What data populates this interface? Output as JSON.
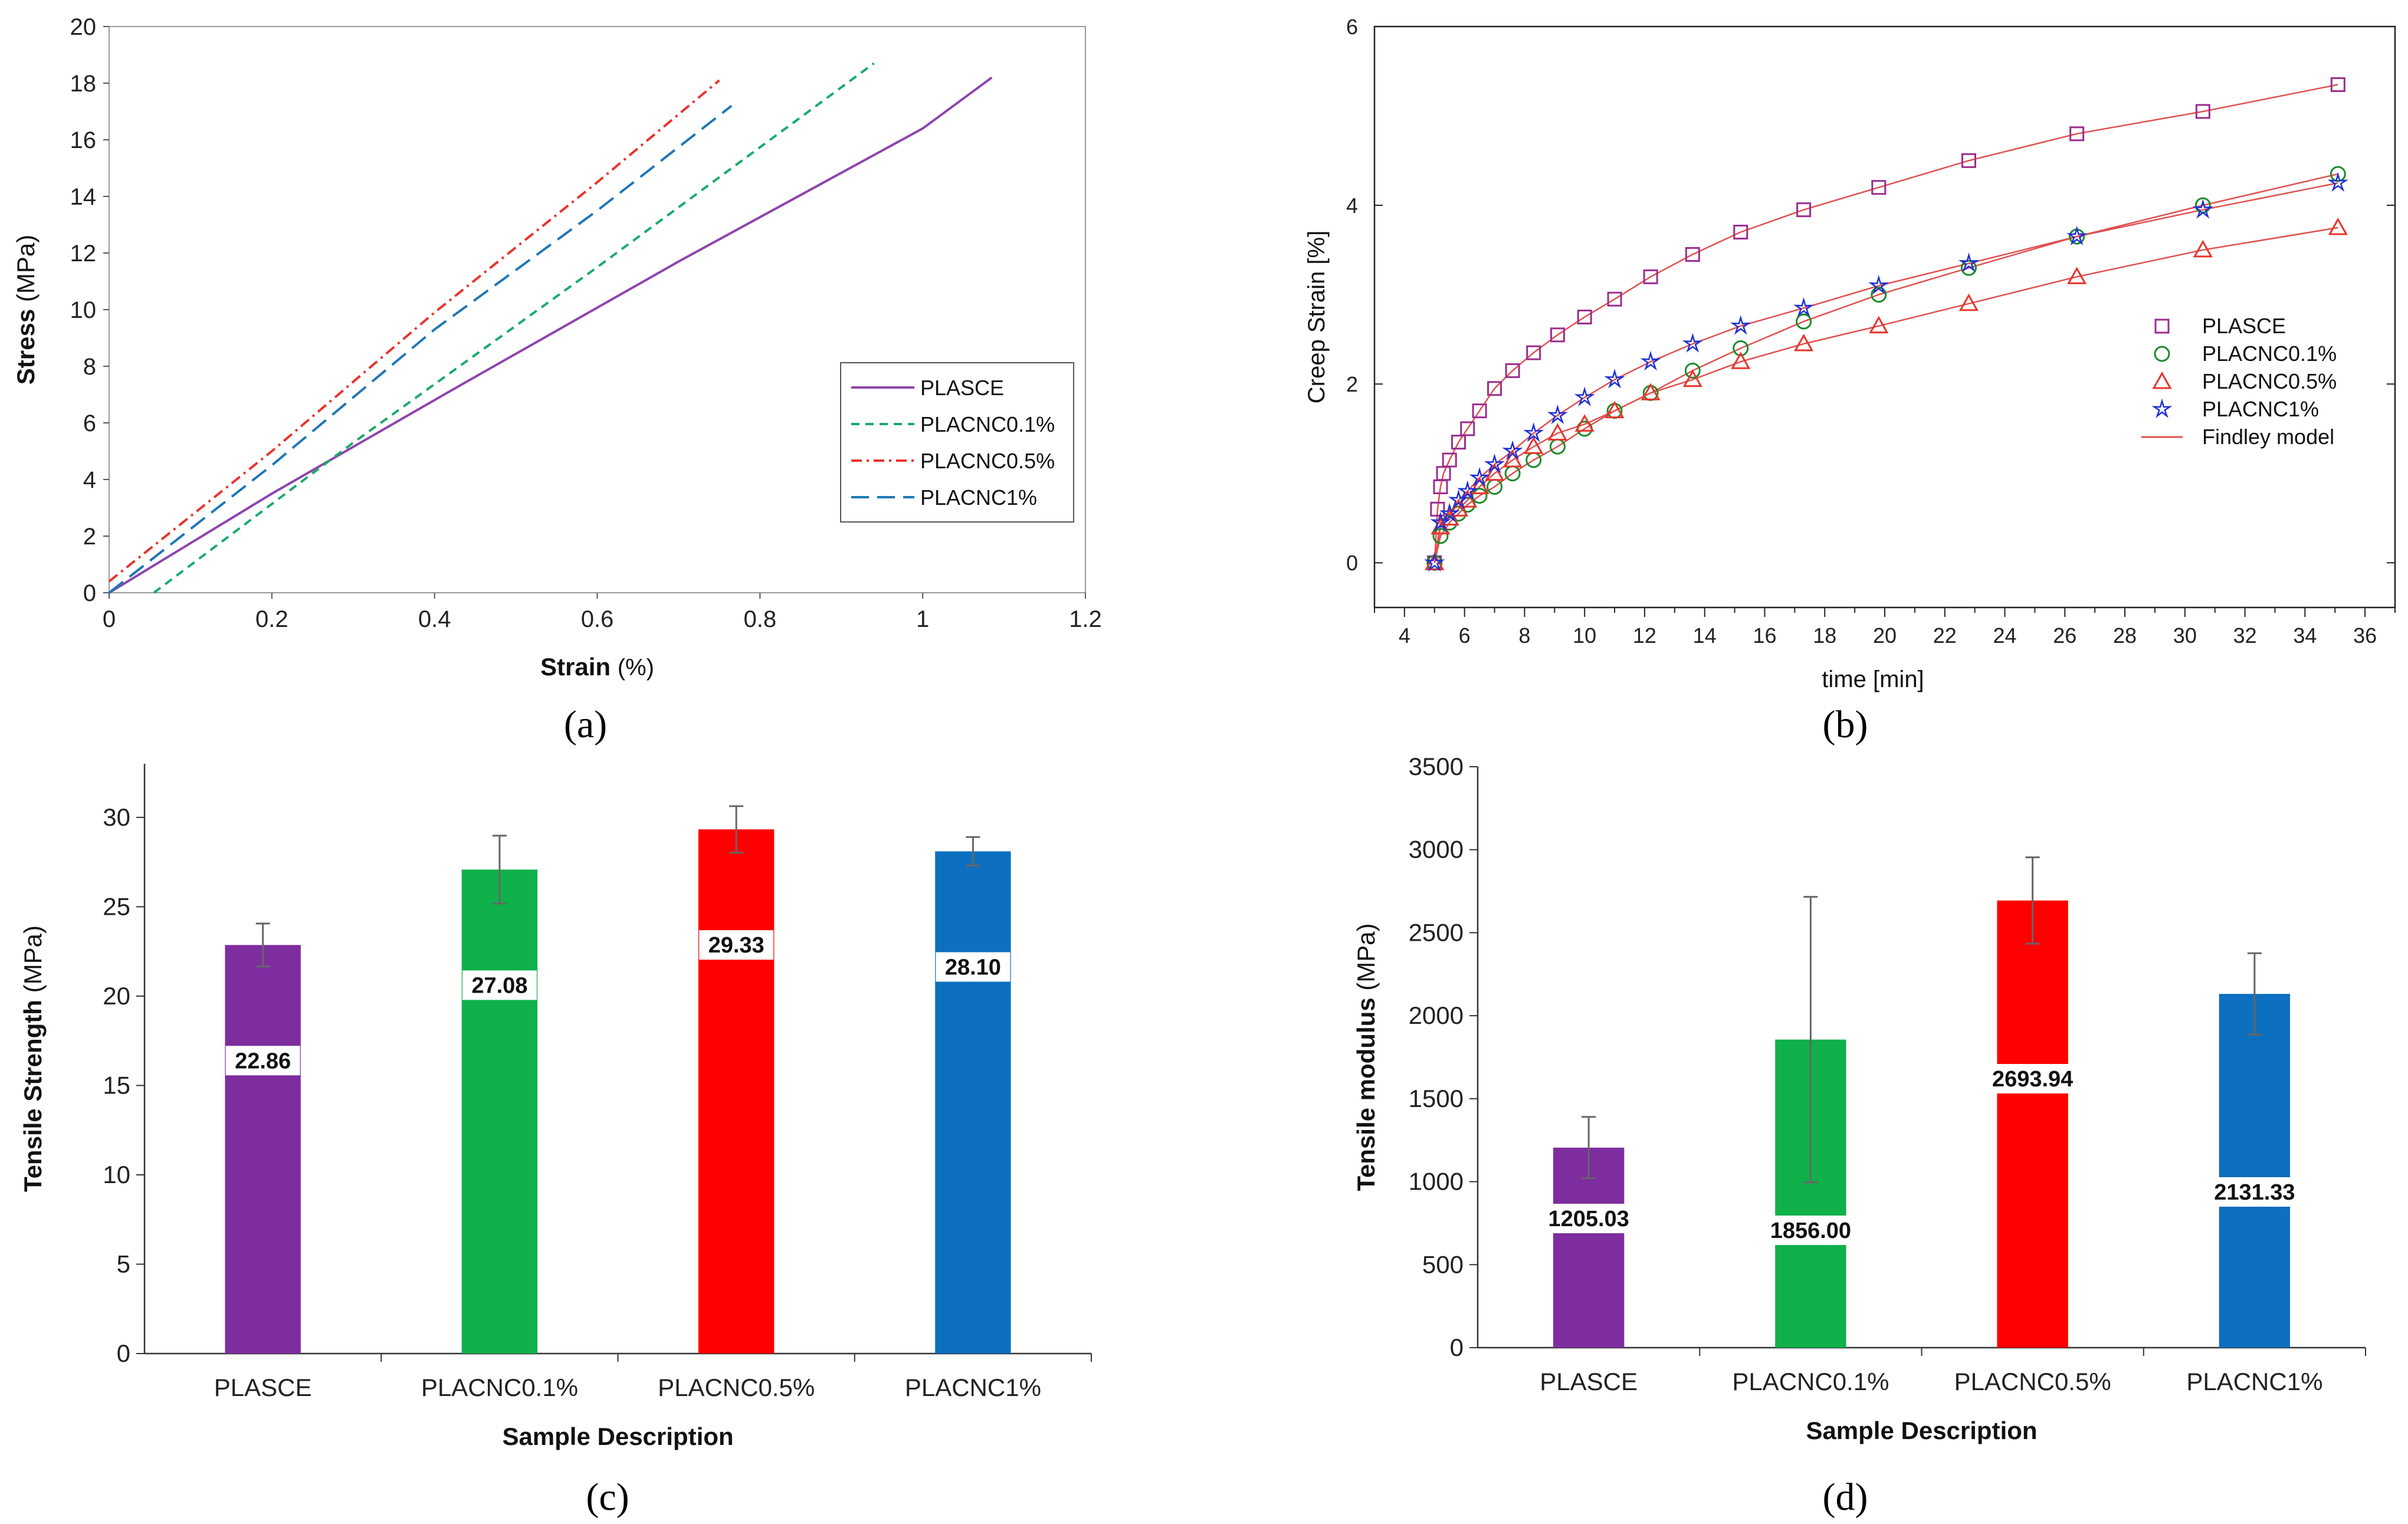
{
  "chart_data": [
    {
      "id": "a",
      "type": "line",
      "caption": "(a)",
      "xlabel": "Strain",
      "xlabel_unit": "(%)",
      "ylabel": "Stress",
      "ylabel_unit": "(MPa)",
      "xlim": [
        0,
        1.2
      ],
      "ylim": [
        0,
        20
      ],
      "xticks": [
        "0",
        "0.2",
        "0.4",
        "0.6",
        "0.8",
        "1",
        "1.2"
      ],
      "yticks": [
        "0",
        "2",
        "4",
        "6",
        "8",
        "10",
        "12",
        "14",
        "16",
        "18",
        "20"
      ],
      "legend_position": "right-middle",
      "series": [
        {
          "name": "PLASCE",
          "color": "#8e44ad",
          "dash": "solid",
          "x": [
            0,
            0.2,
            0.43,
            0.7,
            1.0,
            1.085
          ],
          "y": [
            0,
            3.5,
            7.3,
            11.7,
            16.4,
            18.2
          ]
        },
        {
          "name": "PLACNC0.1%",
          "color": "#1aaa6a",
          "dash": "short",
          "x": [
            0.055,
            0.3,
            0.6,
            0.94
          ],
          "y": [
            0,
            5.3,
            11.5,
            18.7
          ]
        },
        {
          "name": "PLACNC0.5%",
          "color": "#e8342c",
          "dash": "dashdot",
          "x": [
            0,
            0.2,
            0.4,
            0.6,
            0.75
          ],
          "y": [
            0.4,
            5.0,
            9.9,
            14.5,
            18.1
          ]
        },
        {
          "name": "PLACNC1%",
          "color": "#1f77b4",
          "dash": "long",
          "x": [
            0,
            0.2,
            0.4,
            0.6,
            0.765
          ],
          "y": [
            0,
            4.5,
            9.3,
            13.5,
            17.2
          ]
        }
      ]
    },
    {
      "id": "b",
      "type": "scatter",
      "caption": "(b)",
      "xlabel": "time [min]",
      "ylabel": "Creep Strain [%]",
      "xlim": [
        3,
        37
      ],
      "ylim": [
        -0.5,
        6
      ],
      "xticks": [
        "4",
        "6",
        "8",
        "10",
        "12",
        "14",
        "16",
        "18",
        "20",
        "22",
        "24",
        "26",
        "28",
        "30",
        "32",
        "34",
        "36"
      ],
      "yticks": [
        "0",
        "2",
        "4",
        "6"
      ],
      "legend_position": "right-middle",
      "series": [
        {
          "name": "PLASCE",
          "color": "#9b2c8e",
          "marker": "square",
          "x": [
            5.1,
            5.2,
            5.3,
            5.5,
            5.8,
            6.1,
            6.5,
            7.0,
            7.6,
            8.3,
            9.1,
            10.0,
            11.0,
            12.2,
            13.6,
            15.2,
            17.3,
            19.8,
            22.8,
            26.4,
            30.6,
            35.1
          ],
          "y": [
            0.6,
            0.85,
            1.0,
            1.15,
            1.35,
            1.5,
            1.7,
            1.95,
            2.15,
            2.35,
            2.55,
            2.75,
            2.95,
            3.2,
            3.45,
            3.7,
            3.95,
            4.2,
            4.5,
            4.8,
            5.05,
            5.35
          ]
        },
        {
          "name": "PLACNC0.1%",
          "color": "#1a8c2a",
          "marker": "circle",
          "x": [
            5.2,
            5.5,
            5.8,
            6.1,
            6.5,
            7.0,
            7.6,
            8.3,
            9.1,
            10.0,
            11.0,
            12.2,
            13.6,
            15.2,
            17.3,
            19.8,
            22.8,
            26.4,
            30.6,
            35.1
          ],
          "y": [
            0.3,
            0.45,
            0.55,
            0.65,
            0.75,
            0.85,
            1.0,
            1.15,
            1.3,
            1.5,
            1.7,
            1.9,
            2.15,
            2.4,
            2.7,
            3.0,
            3.3,
            3.65,
            4.0,
            4.35
          ]
        },
        {
          "name": "PLACNC0.5%",
          "color": "#e8342c",
          "marker": "triangle",
          "x": [
            5.2,
            5.5,
            5.8,
            6.1,
            6.5,
            7.0,
            7.6,
            8.3,
            9.1,
            10.0,
            11.0,
            12.2,
            13.6,
            15.2,
            17.3,
            19.8,
            22.8,
            26.4,
            30.6,
            35.1
          ],
          "y": [
            0.4,
            0.5,
            0.6,
            0.7,
            0.85,
            1.0,
            1.15,
            1.3,
            1.45,
            1.55,
            1.7,
            1.9,
            2.05,
            2.25,
            2.45,
            2.65,
            2.9,
            3.2,
            3.5,
            3.75
          ]
        },
        {
          "name": "PLACNC1%",
          "color": "#1f2fd6",
          "marker": "star",
          "x": [
            5.2,
            5.5,
            5.8,
            6.1,
            6.5,
            7.0,
            7.6,
            8.3,
            9.1,
            10.0,
            11.0,
            12.2,
            13.6,
            15.2,
            17.3,
            19.8,
            22.8,
            26.4,
            30.6,
            35.1
          ],
          "y": [
            0.45,
            0.55,
            0.7,
            0.8,
            0.95,
            1.1,
            1.25,
            1.45,
            1.65,
            1.85,
            2.05,
            2.25,
            2.45,
            2.65,
            2.85,
            3.1,
            3.35,
            3.65,
            3.95,
            4.25
          ]
        },
        {
          "name": "Findley model",
          "color": "#e05050",
          "marker": "line"
        }
      ],
      "points_start": {
        "x": 5.0,
        "y": 0
      }
    },
    {
      "id": "c",
      "type": "bar",
      "caption": "(c)",
      "xlabel": "Sample Description",
      "ylabel": "Tensile Strength",
      "ylabel_unit": "(MPa)",
      "ylim": [
        0,
        33
      ],
      "yticks": [
        "0",
        "5",
        "10",
        "15",
        "20",
        "25",
        "30"
      ],
      "categories": [
        "PLASCE",
        "PLACNC0.1%",
        "PLACNC0.5%",
        "PLACNC1%"
      ],
      "values": [
        22.86,
        27.08,
        29.33,
        28.1
      ],
      "labels": [
        "22.86",
        "27.08",
        "29.33",
        "28.10"
      ],
      "errors": [
        1.2,
        1.9,
        1.3,
        0.8
      ],
      "colors": [
        "#7e2d9e",
        "#10b04a",
        "#ff0000",
        "#0d6fc0"
      ]
    },
    {
      "id": "d",
      "type": "bar",
      "caption": "(d)",
      "xlabel": "Sample Description",
      "ylabel": "Tensile modulus",
      "ylabel_unit": "(MPa)",
      "ylim": [
        0,
        3500
      ],
      "yticks": [
        "0",
        "500",
        "1000",
        "1500",
        "2000",
        "2500",
        "3000",
        "3500"
      ],
      "categories": [
        "PLASCE",
        "PLACNC0.1%",
        "PLACNC0.5%",
        "PLACNC1%"
      ],
      "values": [
        1205.03,
        1856.0,
        2693.94,
        2131.33
      ],
      "labels": [
        "1205.03",
        "1856.00",
        "2693.94",
        "2131.33"
      ],
      "errors": [
        185,
        860,
        260,
        245
      ],
      "colors": [
        "#7e2d9e",
        "#10b04a",
        "#ff0000",
        "#0d6fc0"
      ]
    }
  ]
}
